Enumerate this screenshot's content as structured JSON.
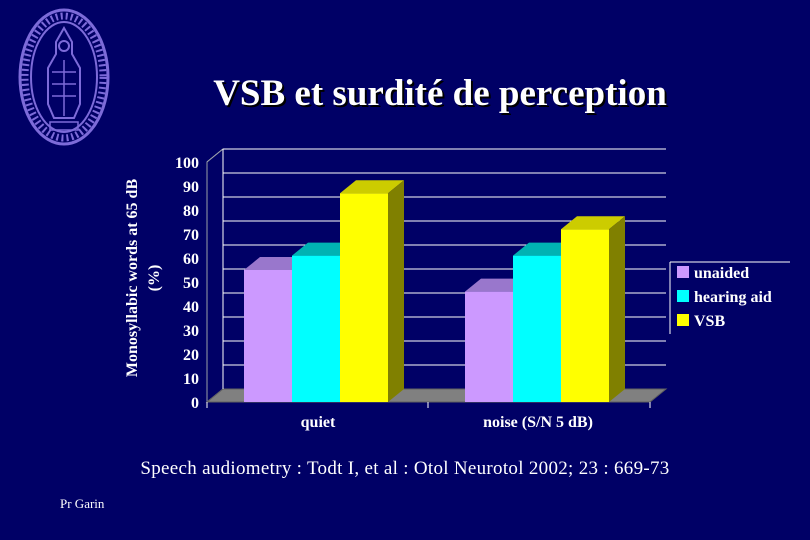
{
  "slide": {
    "title": "VSB et surdité de perception",
    "citation": "Speech audiometry : Todt I, et al : Otol Neurotol 2002; 23 : 669-73",
    "author": "Pr Garin",
    "logo_icon": "university-seal-icon"
  },
  "chart_data": {
    "type": "bar",
    "categories": [
      "quiet",
      "noise (S/N 5 dB)"
    ],
    "series": [
      {
        "name": "unaided",
        "values": [
          55,
          46
        ],
        "color": "#cc99ff",
        "top_color": "#9977cc",
        "side_color": "#6d4d99"
      },
      {
        "name": "hearing aid",
        "values": [
          61,
          61
        ],
        "color": "#00ffff",
        "top_color": "#00b3b3",
        "side_color": "#008080"
      },
      {
        "name": "VSB",
        "values": [
          87,
          72
        ],
        "color": "#ffff00",
        "top_color": "#cccc00",
        "side_color": "#808000"
      }
    ],
    "ylabel": [
      "Monosyllabic words at 65 dB",
      "(%)"
    ],
    "xlabel": "",
    "ylim": [
      0,
      100
    ],
    "yticks": [
      "0",
      "10",
      "20",
      "30",
      "40",
      "50",
      "60",
      "70",
      "80",
      "90",
      "100"
    ],
    "grid": true,
    "legend": "right",
    "three_d": true,
    "background": "#000066"
  }
}
